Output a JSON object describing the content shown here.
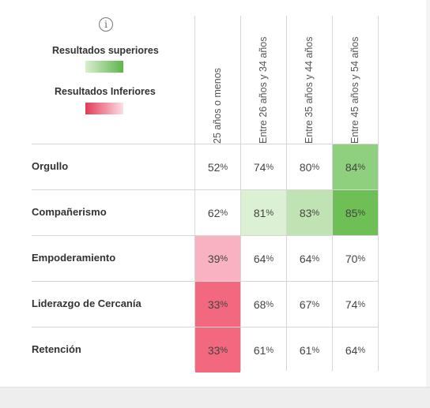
{
  "legend": {
    "superiores": "Resultados superiores",
    "inferiores": "Resultados Inferiores",
    "superiores_color": "#5db54b",
    "inferiores_color": "#e33a55"
  },
  "columns": [
    "25 años o menos",
    "Entre 26 años y 34 años",
    "Entre 35 años y 44 años",
    "Entre 45 años y 54 años"
  ],
  "rows": [
    {
      "label": "Orgullo",
      "values": [
        "52",
        "74",
        "80",
        "84"
      ]
    },
    {
      "label": "Compañerismo",
      "values": [
        "62",
        "81",
        "83",
        "85"
      ]
    },
    {
      "label": "Empoderamiento",
      "values": [
        "39",
        "64",
        "64",
        "70"
      ]
    },
    {
      "label": "Liderazgo de Cercanía",
      "values": [
        "33",
        "68",
        "67",
        "74"
      ]
    },
    {
      "label": "Retención",
      "values": [
        "33",
        "61",
        "61",
        "64"
      ]
    }
  ],
  "cell_colors": [
    [
      "#ffffff",
      "#ffffff",
      "#ffffff",
      "#8fd07e"
    ],
    [
      "#ffffff",
      "#dcf0d3",
      "#bfe3b2",
      "#6fbf57"
    ],
    [
      "#f9b3c0",
      "#ffffff",
      "#ffffff",
      "#ffffff"
    ],
    [
      "#f2687f",
      "#ffffff",
      "#ffffff",
      "#ffffff"
    ],
    [
      "#f2687f",
      "#ffffff",
      "#ffffff",
      "#ffffff"
    ]
  ],
  "percent_symbol": "%"
}
